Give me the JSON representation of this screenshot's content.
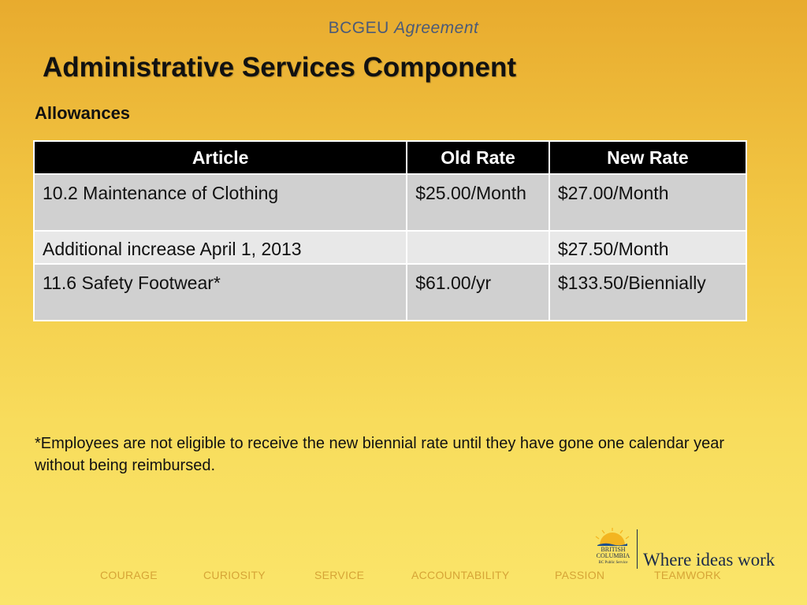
{
  "header": {
    "org": "BCGEU",
    "doc": "Agreement"
  },
  "title": "Administrative Services Component",
  "subtitle": "Allowances",
  "table": {
    "headers": {
      "article": "Article",
      "old_rate": "Old Rate",
      "new_rate": "New Rate"
    },
    "rows": [
      {
        "article": "10.2 Maintenance of Clothing",
        "old_rate": "$25.00/Month",
        "new_rate": "$27.00/Month"
      },
      {
        "article": "Additional increase April 1, 2013",
        "old_rate": "",
        "new_rate": "$27.50/Month"
      },
      {
        "article": "11.6 Safety Footwear*",
        "old_rate": "$61.00/yr",
        "new_rate": "$133.50/Biennially"
      }
    ]
  },
  "footnote": "*Employees are not eligible to receive the new biennial rate until they have gone one calendar year without being reimbursed.",
  "values": [
    "COURAGE",
    "CURIOSITY",
    "SERVICE",
    "ACCOUNTABILITY",
    "PASSION",
    "TEAMWORK"
  ],
  "logo": {
    "line1": "BRITISH",
    "line2": "COLUMBIA",
    "sub": "BC Public Service",
    "tagline": "Where ideas work"
  },
  "colors": {
    "background_top": "#e8ab2e",
    "background_bottom": "#fae56a",
    "header_text": "#4a5a78",
    "table_header_bg": "#000000",
    "row_dark": "#d0d0d0",
    "row_light": "#e8e8e8",
    "values_text": "#d6a436",
    "logo_navy": "#1a2a4a"
  }
}
